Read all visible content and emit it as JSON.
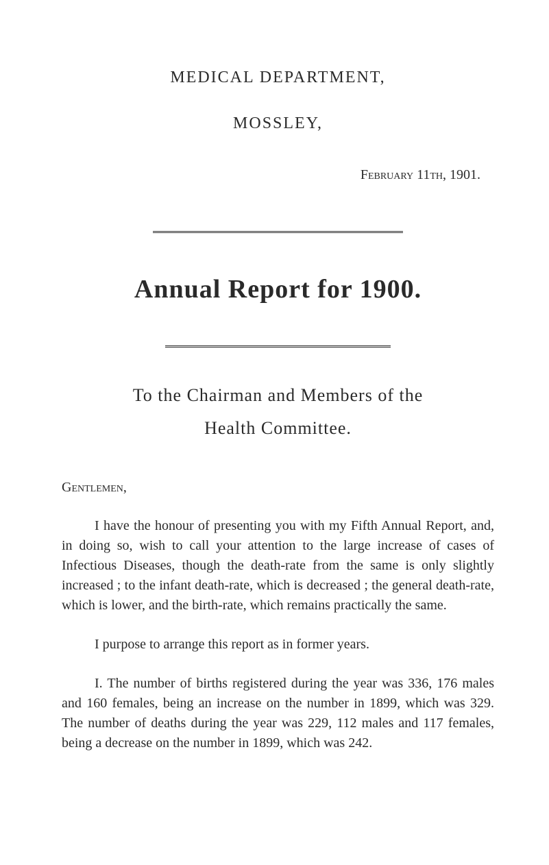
{
  "header": {
    "department": "MEDICAL DEPARTMENT,",
    "place": "MOSSLEY,",
    "date": "February 11th, 1901."
  },
  "title": "Annual Report for 1900.",
  "address": {
    "line1": "To the Chairman and Members of the",
    "line2": "Health Committee."
  },
  "salutation": "Gentlemen,",
  "paragraphs": {
    "p1": "I have the honour of presenting you with my Fifth Annual Report, and, in doing so, wish to call your attention to the large increase of cases of Infectious Diseases, though the death-rate from the same is only slightly increased ; to the infant death-rate, which is decreased ; the general death-rate, which is lower, and the birth-rate, which remains practically the same.",
    "p2": "I purpose to arrange this report as in former years.",
    "p3": "I. The number of births registered during the year was 336, 176 males and 160 females, being an increase on the number in 1899, which was 329. The number of deaths during the year was 229, 112 males and 117 females, being a decrease on the number in 1899, which was 242."
  },
  "colors": {
    "text": "#2a2a2a",
    "background": "#ffffff",
    "rule": "#2a2a2a"
  },
  "typography": {
    "body_fontsize": 20,
    "title_fontsize": 38,
    "header_fontsize": 24,
    "script_fontsize": 26
  }
}
